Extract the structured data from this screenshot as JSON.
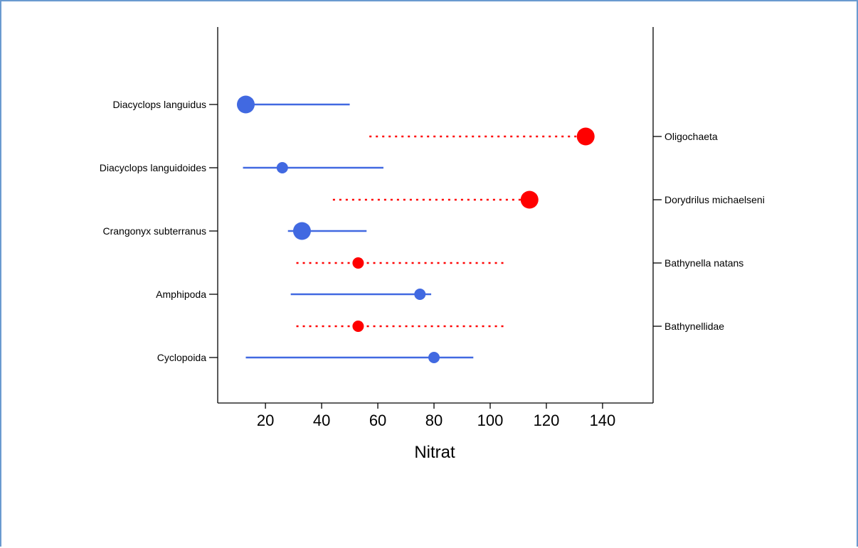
{
  "chart_data": {
    "type": "dot-interval",
    "xlabel": "Nitrat",
    "x_ticks": [
      20,
      40,
      60,
      80,
      100,
      120,
      140
    ],
    "xlim": [
      3,
      158
    ],
    "colors": {
      "left": "#4169e1",
      "right": "#ff0000"
    },
    "left_series": [
      {
        "label": "Diacyclops languidus",
        "x": 13,
        "low": 13,
        "high": 50,
        "size": "large"
      },
      {
        "label": "Diacyclops languidoides",
        "x": 26,
        "low": 12,
        "high": 62,
        "size": "small"
      },
      {
        "label": "Crangonyx subterranus",
        "x": 33,
        "low": 28,
        "high": 56,
        "size": "large"
      },
      {
        "label": "Amphipoda",
        "x": 75,
        "low": 29,
        "high": 79,
        "size": "small"
      },
      {
        "label": "Cyclopoida",
        "x": 80,
        "low": 13,
        "high": 94,
        "size": "small"
      }
    ],
    "right_series": [
      {
        "label": "Oligochaeta",
        "x": 134,
        "low": 57,
        "high": 134,
        "size": "large"
      },
      {
        "label": "Dorydrilus michaelseni",
        "x": 114,
        "low": 44,
        "high": 114,
        "size": "large"
      },
      {
        "label": "Bathynella natans",
        "x": 53,
        "low": 31,
        "high": 106,
        "size": "small"
      },
      {
        "label": "Bathynellidae",
        "x": 53,
        "low": 31,
        "high": 106,
        "size": "small"
      }
    ]
  }
}
